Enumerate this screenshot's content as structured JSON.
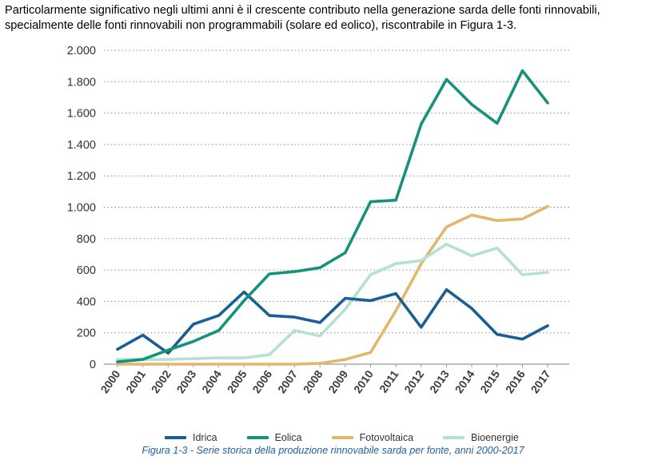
{
  "intro": {
    "line1": "Particolarmente significativo negli ultimi anni è il crescente contributo nella generazione sarda delle fonti rinnovabili,",
    "line2": "specialmente delle fonti rinnovabili non programmabili (solare ed eolico), riscontrabile in Figura 1-3."
  },
  "caption": "Figura 1-3 - Serie storica della produzione rinnovabile sarda per fonte, anni 2000-2017",
  "chart_data": {
    "type": "line",
    "title": "",
    "xlabel": "",
    "ylabel": "",
    "ylim": [
      0,
      2000
    ],
    "yticks": [
      0,
      200,
      400,
      600,
      800,
      1000,
      1200,
      1400,
      1600,
      1800,
      2000
    ],
    "ytick_labels": [
      "0",
      "200",
      "400",
      "600",
      "800",
      "1.000",
      "1.200",
      "1.400",
      "1.600",
      "1.800",
      "2.000"
    ],
    "grid": "horizontal dotted",
    "legend_position": "bottom",
    "categories": [
      "2000",
      "2001",
      "2002",
      "2003",
      "2004",
      "2005",
      "2006",
      "2007",
      "2008",
      "2009",
      "2010",
      "2011",
      "2012",
      "2013",
      "2014",
      "2015",
      "2016",
      "2017"
    ],
    "series": [
      {
        "name": "Idrica",
        "color": "#1a5e96",
        "values": [
          95,
          185,
          70,
          255,
          310,
          460,
          310,
          300,
          265,
          420,
          405,
          450,
          235,
          475,
          355,
          190,
          160,
          245
        ]
      },
      {
        "name": "Eolica",
        "color": "#14937a",
        "values": [
          15,
          30,
          90,
          145,
          215,
          405,
          575,
          590,
          615,
          710,
          1035,
          1045,
          1530,
          1815,
          1655,
          1535,
          1870,
          1665
        ]
      },
      {
        "name": "Fotovoltaica",
        "color": "#e2b66c",
        "values": [
          0,
          0,
          0,
          0,
          0,
          0,
          0,
          0,
          5,
          30,
          75,
          340,
          640,
          875,
          950,
          915,
          925,
          1005
        ]
      },
      {
        "name": "Bioenergie",
        "color": "#b6e0d2",
        "values": [
          30,
          30,
          30,
          35,
          40,
          40,
          60,
          215,
          180,
          350,
          570,
          640,
          660,
          765,
          690,
          740,
          570,
          585
        ]
      }
    ]
  }
}
